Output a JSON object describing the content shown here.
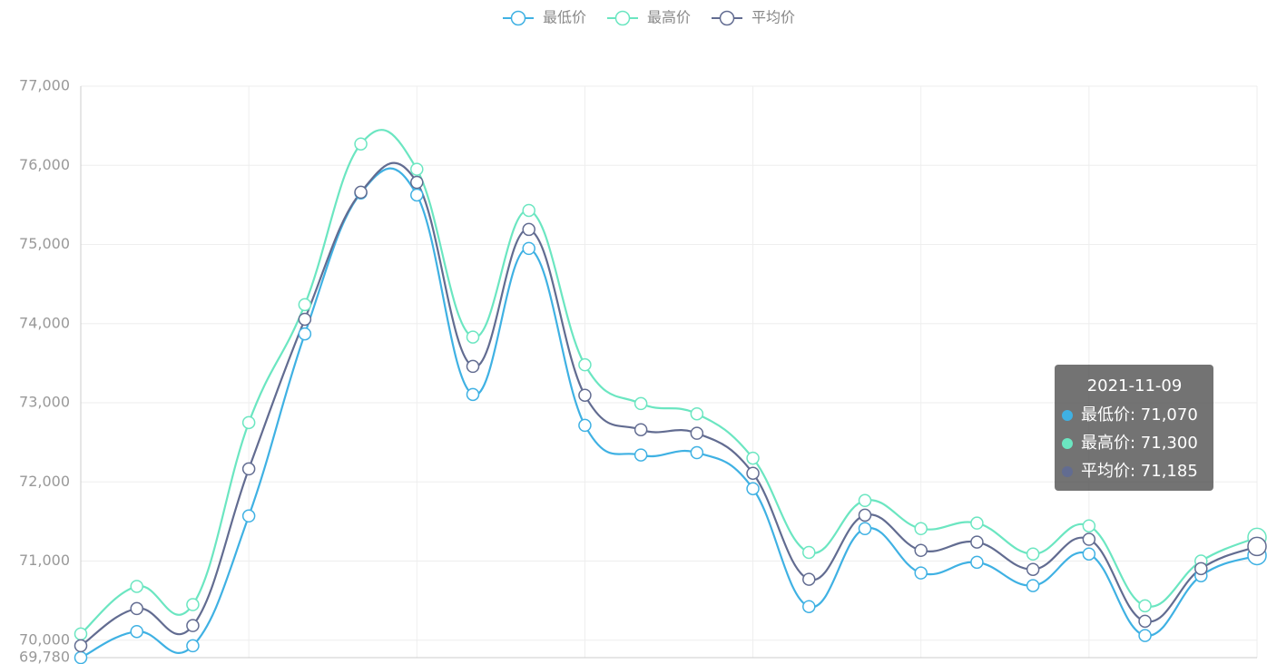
{
  "chart_data": {
    "type": "line",
    "categories": [
      null,
      null,
      null,
      null,
      null,
      null,
      null,
      null,
      null,
      null,
      null,
      null,
      null,
      null,
      null,
      null,
      null,
      null,
      null,
      null,
      null,
      "2021-11-09"
    ],
    "series": [
      {
        "name": "最低价",
        "color": "#3fb1e3",
        "values": [
          69780,
          70110,
          69930,
          71570,
          73870,
          75650,
          75625,
          73105,
          74950,
          72715,
          72340,
          72370,
          71915,
          70425,
          71410,
          70850,
          70985,
          70690,
          71090,
          70060,
          70815,
          71070
        ]
      },
      {
        "name": "最高价",
        "color": "#6be6c1",
        "values": [
          70080,
          70680,
          70450,
          72750,
          74240,
          76270,
          75950,
          73830,
          75430,
          73480,
          72990,
          72860,
          72300,
          71110,
          71765,
          71410,
          71480,
          71090,
          71445,
          70435,
          71000,
          71300
        ]
      },
      {
        "name": "平均价",
        "color": "#626c91",
        "values": [
          69930,
          70400,
          70185,
          72165,
          74055,
          75660,
          75785,
          73460,
          75190,
          73095,
          72660,
          72615,
          72110,
          70770,
          71580,
          71135,
          71240,
          70895,
          71275,
          70240,
          70905,
          71185
        ]
      }
    ],
    "ylim": [
      69780,
      77000
    ],
    "yticks": [
      {
        "value": 69780,
        "label": "69,780"
      },
      {
        "value": 70000,
        "label": "70,000"
      },
      {
        "value": 71000,
        "label": "71,000"
      },
      {
        "value": 72000,
        "label": "72,000"
      },
      {
        "value": 73000,
        "label": "73,000"
      },
      {
        "value": 74000,
        "label": "74,000"
      },
      {
        "value": 75000,
        "label": "75,000"
      },
      {
        "value": 76000,
        "label": "76,000"
      },
      {
        "value": 77000,
        "label": "77,000"
      }
    ],
    "grid": true,
    "legend": "top",
    "tooltip": {
      "rows": [
        "最低价: 71,070",
        "最高价: 71,300",
        "平均价: 71,185"
      ]
    }
  }
}
